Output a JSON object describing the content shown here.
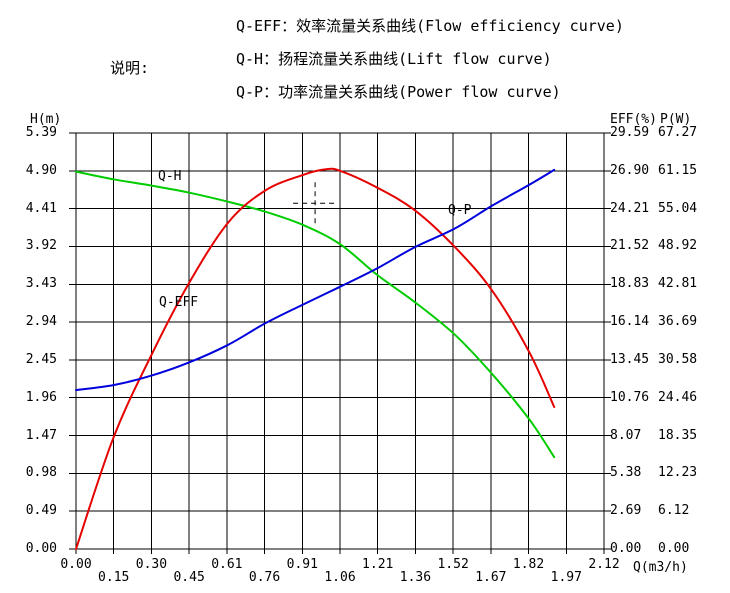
{
  "legend": {
    "heading": "说明:",
    "items": [
      {
        "key": "Q-EFF",
        "label": "Q-EFF：效率流量关系曲线(Flow efficiency curve)"
      },
      {
        "key": "Q-H",
        "label": "Q-H：扬程流量关系曲线(Lift flow curve)"
      },
      {
        "key": "Q-P",
        "label": "Q-P：功率流量关系曲线(Power flow curve)"
      }
    ]
  },
  "curve_labels": [
    {
      "text": "Q-H"
    },
    {
      "text": "Q-EFF"
    },
    {
      "text": "Q-P"
    }
  ],
  "chart_data": {
    "type": "line",
    "grid": {
      "rows": 11,
      "cols": 14,
      "grid_on": true
    },
    "axes": {
      "left": {
        "title": "H(m)",
        "max": 5.39,
        "min": 0,
        "ticks": [
          "5.39",
          "4.90",
          "4.41",
          "3.92",
          "3.43",
          "2.94",
          "2.45",
          "1.96",
          "1.47",
          "0.98",
          "0.49",
          "0.00"
        ]
      },
      "right_eff": {
        "title": "EFF(%)",
        "max": 29.59,
        "min": 0,
        "ticks": [
          "29.59",
          "26.90",
          "24.21",
          "21.52",
          "18.83",
          "16.14",
          "13.45",
          "10.76",
          "8.07",
          "5.38",
          "2.69",
          "0.00"
        ]
      },
      "right_p": {
        "title": "P(W)",
        "max": 67.27,
        "min": 0,
        "ticks": [
          "67.27",
          "61.15",
          "55.04",
          "48.92",
          "42.81",
          "36.69",
          "30.58",
          "24.46",
          "18.35",
          "12.23",
          "6.12",
          "0.00"
        ]
      },
      "x": {
        "title": "Q(m3/h)",
        "max": 2.12,
        "min": 0,
        "ticks": [
          "0.00",
          "0.15",
          "0.30",
          "0.45",
          "0.61",
          "0.76",
          "0.91",
          "1.06",
          "1.21",
          "1.36",
          "1.52",
          "1.67",
          "1.82",
          "1.97",
          "2.12"
        ]
      }
    },
    "series": [
      {
        "name": "Q-H",
        "scale": "left",
        "color": "#00cc00",
        "x": [
          0,
          0.15,
          0.3,
          0.45,
          0.61,
          0.76,
          0.91,
          1.06,
          1.21,
          1.36,
          1.52,
          1.67,
          1.82,
          1.92
        ],
        "y": [
          4.89,
          4.79,
          4.71,
          4.62,
          4.5,
          4.37,
          4.2,
          3.95,
          3.55,
          3.2,
          2.78,
          2.27,
          1.68,
          1.19
        ]
      },
      {
        "name": "Q-EFF",
        "scale": "right_eff",
        "color": "#e60000",
        "x": [
          0,
          0.15,
          0.3,
          0.45,
          0.61,
          0.76,
          0.91,
          1.0,
          1.06,
          1.21,
          1.36,
          1.52,
          1.67,
          1.82,
          1.92
        ],
        "y": [
          0,
          7.9,
          13.7,
          18.8,
          23.2,
          25.5,
          26.6,
          27.0,
          26.9,
          25.7,
          24.1,
          21.5,
          18.4,
          14.0,
          10.1
        ]
      },
      {
        "name": "Q-P",
        "scale": "right_p",
        "color": "#0000dd",
        "x": [
          0,
          0.15,
          0.3,
          0.45,
          0.61,
          0.76,
          0.91,
          1.06,
          1.21,
          1.36,
          1.52,
          1.67,
          1.82,
          1.92
        ],
        "y": [
          25.7,
          26.5,
          28.0,
          30.1,
          33.0,
          36.5,
          39.5,
          42.4,
          45.4,
          48.8,
          51.8,
          55.5,
          58.9,
          61.3
        ]
      }
    ],
    "marker": {
      "type": "dashed-crosshair",
      "q": 0.96,
      "h": 4.48
    },
    "colors": {
      "grid": "#000000",
      "text": "#000000",
      "background": "#ffffff"
    }
  }
}
